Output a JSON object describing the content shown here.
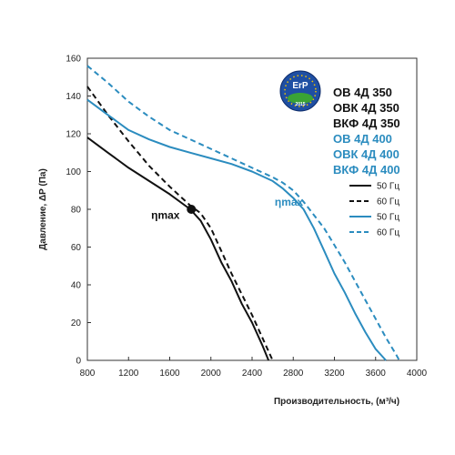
{
  "chart_data": {
    "type": "line",
    "title": "",
    "xlabel": "Производительность, (м³/ч)",
    "ylabel": "Давление, ΔP (Па)",
    "xlim": [
      800,
      4000
    ],
    "ylim": [
      0,
      160
    ],
    "xticks": [
      "800",
      "1200",
      "1600",
      "2000",
      "2400",
      "2800",
      "3200",
      "3600",
      "4000"
    ],
    "yticks": [
      "0",
      "20",
      "40",
      "60",
      "80",
      "100",
      "120",
      "140",
      "160"
    ],
    "grid": false,
    "legend_position": "right",
    "colors": {
      "black": "#111111",
      "blue": "#2b8cbf",
      "frame": "#333333"
    },
    "models": [
      {
        "text": "ОВ 4Д 350",
        "color": "#111111"
      },
      {
        "text": "ОВК 4Д 350",
        "color": "#111111"
      },
      {
        "text": "ВКФ 4Д 350",
        "color": "#111111"
      },
      {
        "text": "ОВ 4Д 400",
        "color": "#2b8cbf"
      },
      {
        "text": "ОВК 4Д 400",
        "color": "#2b8cbf"
      },
      {
        "text": "ВКФ 4Д 400",
        "color": "#2b8cbf"
      }
    ],
    "series": [
      {
        "name": "50 Гц",
        "color": "#111111",
        "dashed": false,
        "points": [
          [
            800,
            118
          ],
          [
            1000,
            110
          ],
          [
            1200,
            102
          ],
          [
            1400,
            95
          ],
          [
            1600,
            88
          ],
          [
            1800,
            80
          ],
          [
            1900,
            74
          ],
          [
            2000,
            64
          ],
          [
            2100,
            52
          ],
          [
            2200,
            42
          ],
          [
            2300,
            30
          ],
          [
            2400,
            20
          ],
          [
            2500,
            8
          ],
          [
            2560,
            0
          ]
        ]
      },
      {
        "name": "60 Гц",
        "color": "#111111",
        "dashed": true,
        "points": [
          [
            800,
            145
          ],
          [
            1000,
            130
          ],
          [
            1200,
            116
          ],
          [
            1400,
            103
          ],
          [
            1600,
            92
          ],
          [
            1800,
            82
          ],
          [
            1900,
            78
          ],
          [
            2000,
            70
          ],
          [
            2100,
            58
          ],
          [
            2200,
            46
          ],
          [
            2300,
            35
          ],
          [
            2400,
            24
          ],
          [
            2500,
            12
          ],
          [
            2600,
            0
          ]
        ]
      },
      {
        "name": "50 Гц",
        "color": "#2b8cbf",
        "dashed": false,
        "points": [
          [
            800,
            138
          ],
          [
            1000,
            130
          ],
          [
            1200,
            122
          ],
          [
            1400,
            117
          ],
          [
            1600,
            113
          ],
          [
            1800,
            110
          ],
          [
            2000,
            107
          ],
          [
            2200,
            104
          ],
          [
            2400,
            100
          ],
          [
            2600,
            95
          ],
          [
            2700,
            91
          ],
          [
            2800,
            86
          ],
          [
            2900,
            80
          ],
          [
            3000,
            70
          ],
          [
            3100,
            58
          ],
          [
            3200,
            46
          ],
          [
            3300,
            36
          ],
          [
            3400,
            25
          ],
          [
            3500,
            15
          ],
          [
            3600,
            6
          ],
          [
            3700,
            0
          ]
        ]
      },
      {
        "name": "60 Гц",
        "color": "#2b8cbf",
        "dashed": true,
        "points": [
          [
            800,
            156
          ],
          [
            1000,
            147
          ],
          [
            1200,
            137
          ],
          [
            1400,
            129
          ],
          [
            1600,
            122
          ],
          [
            1800,
            117
          ],
          [
            2000,
            112
          ],
          [
            2200,
            107
          ],
          [
            2400,
            102
          ],
          [
            2600,
            97
          ],
          [
            2700,
            94
          ],
          [
            2800,
            90
          ],
          [
            2900,
            84
          ],
          [
            3000,
            77
          ],
          [
            3100,
            70
          ],
          [
            3200,
            61
          ],
          [
            3300,
            52
          ],
          [
            3400,
            42
          ],
          [
            3500,
            32
          ],
          [
            3600,
            22
          ],
          [
            3700,
            12
          ],
          [
            3800,
            3
          ],
          [
            3830,
            0
          ]
        ]
      }
    ],
    "annotations": [
      {
        "text": "ηmax",
        "color": "#111111",
        "x": 1420,
        "y": 75
      },
      {
        "text": "ηmax",
        "color": "#2b8cbf",
        "x": 2620,
        "y": 82
      }
    ],
    "max_point": {
      "x": 1810,
      "y": 80
    }
  }
}
